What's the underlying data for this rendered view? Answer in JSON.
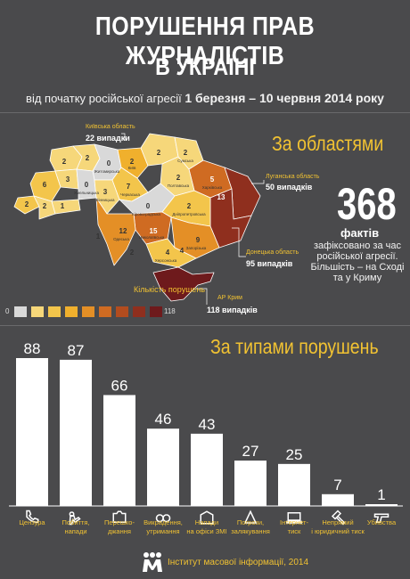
{
  "header": {
    "title_line1": "ПОРУШЕННЯ ПРАВ ЖУРНАЛІСТІВ",
    "title_line2": "В УКРАЇНІ",
    "subtitle_prefix": "від початку російської агресії ",
    "subtitle_dates": "1 березня – 10 червня 2014 року"
  },
  "regions_section": {
    "title": "За областями",
    "callouts": [
      {
        "region": "Київська область",
        "value": "22 випадки"
      },
      {
        "region": "Луганська область",
        "value": "50 випадків"
      },
      {
        "region": "Донецька область",
        "value": "95 випадків"
      },
      {
        "region": "АР Крим",
        "value": "118 випадків"
      }
    ],
    "map_labels": [
      "2",
      "2",
      "0",
      "2",
      "2",
      "2",
      "5",
      "2",
      "6",
      "3",
      "3",
      "1",
      "0",
      "2",
      "7",
      "2",
      "13",
      "2",
      "0",
      "2",
      "15",
      "9",
      "12",
      "4",
      "4",
      "1",
      "Житомирська",
      "Черкаська",
      "Київ",
      "Кіровоградська",
      "Дніпропетровська",
      "Запорізька",
      "Полтавська",
      "Миколаївська",
      "Харківська",
      "Херсонська",
      "Сумська",
      "Одеська",
      "Вінницька",
      "Хмельницька"
    ],
    "total": "368",
    "total_label": "фактів",
    "total_desc": "зафіксовано за час російської агресії. Більшість – на Сході та у Криму",
    "legend_title": "Кількість порушень",
    "legend_min": "0",
    "legend_max": "118",
    "legend_colors": [
      "#d9d9d9",
      "#f6d77a",
      "#f3c54b",
      "#f0b02d",
      "#e48f26",
      "#cf6b22",
      "#b24c1e",
      "#8f2f1e",
      "#6e1a1c"
    ]
  },
  "types_section": {
    "title": "За типами порушень"
  },
  "chart_data": {
    "type": "bar",
    "title": "За типами порушень",
    "categories": [
      "Цензура",
      "Побиття, напади",
      "Перешко-джання",
      "Викрадення, утримання",
      "Напади на офіси ЗМІ",
      "Погрози, залякування",
      "Інтернет-тиск",
      "Непрямий і юридичний тиск",
      "Убивства"
    ],
    "values": [
      88,
      87,
      66,
      46,
      43,
      27,
      25,
      7,
      1
    ],
    "icons": [
      "phone-cut-icon",
      "beating-icon",
      "camera-block-icon",
      "handcuffs-icon",
      "office-attack-icon",
      "threat-icon",
      "internet-icon",
      "gavel-icon",
      "gun-icon"
    ],
    "bar_color": "#ffffff",
    "label_color": "#f1c232"
  },
  "footer": {
    "text": "Інститут масової інформації, 2014"
  }
}
